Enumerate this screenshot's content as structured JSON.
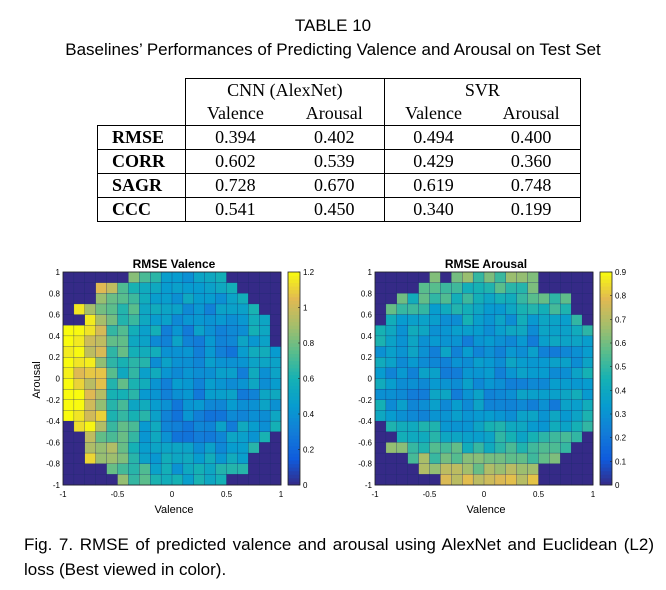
{
  "table": {
    "label": "TABLE 10",
    "title": "Baselines’ Performances of Predicting Valence and Arousal on Test Set",
    "groups": [
      "CNN (AlexNet)",
      "SVR"
    ],
    "subheaders": [
      "Valence",
      "Arousal",
      "Valence",
      "Arousal"
    ],
    "rows": [
      {
        "metric": "RMSE",
        "values": [
          "0.394",
          "0.402",
          "0.494",
          "0.400"
        ]
      },
      {
        "metric": "CORR",
        "values": [
          "0.602",
          "0.539",
          "0.429",
          "0.360"
        ]
      },
      {
        "metric": "SAGR",
        "values": [
          "0.728",
          "0.670",
          "0.619",
          "0.748"
        ]
      },
      {
        "metric": "CCC",
        "values": [
          "0.541",
          "0.450",
          "0.340",
          "0.199"
        ]
      }
    ]
  },
  "chart_data": [
    {
      "type": "heatmap",
      "title": "RMSE Valence",
      "xlabel": "Valence",
      "ylabel": "Arousal",
      "xlim": [
        -1,
        1
      ],
      "ylim": [
        -1,
        1
      ],
      "xticks": [
        "-1",
        "-0.5",
        "0",
        "0.5",
        "1"
      ],
      "yticks": [
        "-1",
        "-0.8",
        "-0.6",
        "-0.4",
        "-0.2",
        "0",
        "0.2",
        "0.4",
        "0.6",
        "0.8",
        "1"
      ],
      "colorbar_range": [
        0,
        1.2
      ],
      "colorbar_ticks": [
        "0",
        "0.2",
        "0.4",
        "0.6",
        "0.8",
        "1",
        "1.2"
      ],
      "grid_size": [
        20,
        20
      ],
      "pattern": "high error at strongly negative valence (left edge, ~0.9-1.1); low error near the center and positive valence (~0.3-0.5); corners empty"
    },
    {
      "type": "heatmap",
      "title": "RMSE Arousal",
      "xlabel": "Valence",
      "ylabel": "",
      "xlim": [
        -1,
        1
      ],
      "ylim": [
        -1,
        1
      ],
      "xticks": [
        "-1",
        "-0.5",
        "0",
        "0.5",
        "1"
      ],
      "yticks": [
        "-1",
        "-0.8",
        "-0.6",
        "-0.4",
        "-0.2",
        "0",
        "0.2",
        "0.4",
        "0.6",
        "0.8",
        "1"
      ],
      "colorbar_range": [
        0,
        0.9
      ],
      "colorbar_ticks": [
        "0",
        "0.1",
        "0.2",
        "0.3",
        "0.4",
        "0.5",
        "0.6",
        "0.7",
        "0.8",
        "0.9"
      ],
      "grid_size": [
        20,
        20
      ],
      "pattern": "high error at strongly negative arousal (bottom, ~0.6-0.8) and high arousal top (~0.5); low error at center (~0.3); corners empty"
    }
  ],
  "caption": "Fig. 7. RMSE of predicted valence and arousal using AlexNet and Euclidean (L2) loss (Best viewed in color)."
}
